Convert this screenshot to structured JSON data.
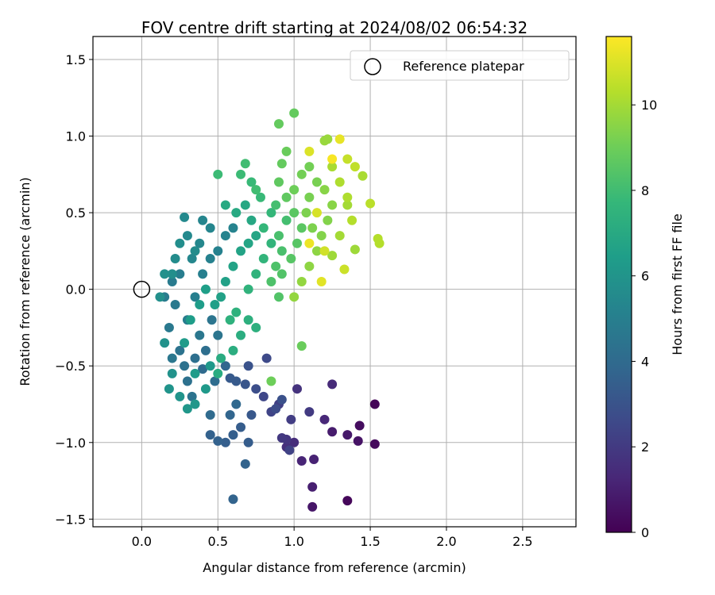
{
  "chart_data": {
    "type": "scatter",
    "title": "FOV centre drift starting at 2024/08/02 06:54:32",
    "xlabel": "Angular distance from reference (arcmin)",
    "ylabel": "Rotation from reference (arcmin)",
    "xlim": [
      -0.32,
      2.85
    ],
    "ylim": [
      -1.55,
      1.65
    ],
    "xticks": [
      0.0,
      0.5,
      1.0,
      1.5,
      2.0,
      2.5
    ],
    "xtick_labels": [
      "0.0",
      "0.5",
      "1.0",
      "1.5",
      "2.0",
      "2.5"
    ],
    "yticks": [
      -1.5,
      -1.0,
      -0.5,
      0.0,
      0.5,
      1.0,
      1.5
    ],
    "ytick_labels": [
      "−1.5",
      "−1.0",
      "−0.5",
      "0.0",
      "0.5",
      "1.0",
      "1.5"
    ],
    "grid": true,
    "legend": {
      "placement": "top-right",
      "entries": [
        {
          "label": "Reference platepar",
          "marker": "open-circle"
        }
      ]
    },
    "reference_point": {
      "x": 0.0,
      "y": 0.0
    },
    "colorbar": {
      "label": "Hours from first FF file",
      "colormap": "viridis",
      "range": [
        0,
        11.6
      ],
      "ticks": [
        0,
        2,
        4,
        6,
        8,
        10
      ],
      "tick_labels": [
        "0",
        "2",
        "4",
        "6",
        "8",
        "10"
      ]
    },
    "colormap_stops": [
      "#440154",
      "#482878",
      "#3e4989",
      "#31688e",
      "#26828e",
      "#1f9e89",
      "#35b779",
      "#6ece58",
      "#b5de2b",
      "#fde725"
    ],
    "series": [
      {
        "points": [
          [
            1.53,
            -0.75,
            0.1
          ],
          [
            1.35,
            -1.38,
            0.2
          ],
          [
            1.53,
            -1.01,
            0.3
          ],
          [
            1.43,
            -0.89,
            0.4
          ],
          [
            1.42,
            -0.99,
            0.6
          ],
          [
            1.12,
            -1.42,
            0.7
          ],
          [
            1.35,
            -0.95,
            0.8
          ],
          [
            1.25,
            -0.93,
            0.9
          ],
          [
            1.12,
            -1.29,
            1.0
          ],
          [
            1.13,
            -1.11,
            1.1
          ],
          [
            1.05,
            -1.12,
            1.2
          ],
          [
            1.2,
            -0.85,
            1.3
          ],
          [
            1.25,
            -0.62,
            1.4
          ],
          [
            1.0,
            -1.0,
            1.5
          ],
          [
            0.95,
            -1.03,
            1.6
          ],
          [
            1.02,
            -0.65,
            1.7
          ],
          [
            0.95,
            -0.98,
            1.8
          ],
          [
            0.92,
            -0.97,
            1.9
          ],
          [
            1.1,
            -0.8,
            2.0
          ],
          [
            0.98,
            -0.85,
            2.1
          ],
          [
            0.9,
            -0.75,
            2.2
          ],
          [
            0.97,
            -1.05,
            2.3
          ],
          [
            0.85,
            -0.8,
            2.4
          ],
          [
            0.8,
            -0.7,
            2.5
          ],
          [
            0.82,
            -0.45,
            2.6
          ],
          [
            0.88,
            -0.78,
            2.7
          ],
          [
            0.75,
            -0.65,
            2.8
          ],
          [
            0.92,
            -0.72,
            2.9
          ],
          [
            0.7,
            -0.5,
            3.0
          ],
          [
            0.68,
            -0.62,
            3.1
          ],
          [
            0.72,
            -0.82,
            3.2
          ],
          [
            0.62,
            -0.6,
            3.3
          ],
          [
            0.58,
            -0.58,
            3.3
          ],
          [
            0.65,
            -0.9,
            3.4
          ],
          [
            0.7,
            -1.0,
            3.4
          ],
          [
            0.6,
            -0.95,
            3.5
          ],
          [
            0.55,
            -1.0,
            3.5
          ],
          [
            0.5,
            -0.99,
            3.6
          ],
          [
            0.45,
            -0.95,
            3.6
          ],
          [
            0.6,
            -1.37,
            3.7
          ],
          [
            0.68,
            -1.14,
            3.7
          ],
          [
            0.55,
            -0.5,
            3.8
          ],
          [
            0.58,
            -0.82,
            3.8
          ],
          [
            0.62,
            -0.75,
            3.9
          ],
          [
            0.45,
            -0.82,
            4.0
          ],
          [
            0.4,
            -0.52,
            4.0
          ],
          [
            0.48,
            -0.6,
            4.1
          ],
          [
            0.35,
            -0.45,
            4.2
          ],
          [
            0.42,
            -0.4,
            4.2
          ],
          [
            0.3,
            -0.6,
            4.3
          ],
          [
            0.28,
            -0.5,
            4.3
          ],
          [
            0.33,
            -0.7,
            4.4
          ],
          [
            0.25,
            -0.4,
            4.4
          ],
          [
            0.5,
            -0.3,
            4.5
          ],
          [
            0.46,
            -0.2,
            4.5
          ],
          [
            0.38,
            -0.3,
            4.6
          ],
          [
            0.2,
            -0.45,
            4.6
          ],
          [
            0.18,
            -0.25,
            4.7
          ],
          [
            0.22,
            -0.1,
            4.7
          ],
          [
            0.15,
            -0.05,
            4.8
          ],
          [
            0.2,
            0.05,
            4.8
          ],
          [
            0.25,
            0.1,
            4.9
          ],
          [
            0.3,
            -0.2,
            4.9
          ],
          [
            0.35,
            -0.05,
            5.0
          ],
          [
            0.4,
            0.1,
            5.0
          ],
          [
            0.45,
            0.2,
            5.1
          ],
          [
            0.5,
            0.25,
            5.1
          ],
          [
            0.55,
            0.35,
            5.2
          ],
          [
            0.6,
            0.4,
            5.2
          ],
          [
            0.45,
            0.4,
            5.3
          ],
          [
            0.4,
            0.45,
            5.3
          ],
          [
            0.38,
            0.3,
            5.4
          ],
          [
            0.33,
            0.2,
            5.4
          ],
          [
            0.3,
            0.35,
            5.5
          ],
          [
            0.28,
            0.47,
            5.5
          ],
          [
            0.35,
            0.25,
            5.6
          ],
          [
            0.22,
            0.2,
            5.6
          ],
          [
            0.25,
            0.3,
            5.7
          ],
          [
            0.2,
            0.1,
            5.7
          ],
          [
            0.15,
            0.1,
            5.8
          ],
          [
            0.12,
            -0.05,
            5.8
          ],
          [
            0.15,
            -0.35,
            5.9
          ],
          [
            0.2,
            -0.55,
            5.9
          ],
          [
            0.25,
            -0.7,
            6.0
          ],
          [
            0.18,
            -0.65,
            6.0
          ],
          [
            0.3,
            -0.78,
            6.1
          ],
          [
            0.35,
            -0.75,
            6.1
          ],
          [
            0.42,
            -0.65,
            6.2
          ],
          [
            0.45,
            -0.5,
            6.2
          ],
          [
            0.35,
            -0.55,
            6.3
          ],
          [
            0.28,
            -0.35,
            6.3
          ],
          [
            0.32,
            -0.2,
            6.4
          ],
          [
            0.38,
            -0.1,
            6.4
          ],
          [
            0.42,
            0.0,
            6.5
          ],
          [
            0.48,
            -0.1,
            6.5
          ],
          [
            0.52,
            -0.05,
            6.6
          ],
          [
            0.55,
            0.05,
            6.6
          ],
          [
            0.6,
            0.15,
            6.7
          ],
          [
            0.65,
            0.25,
            6.7
          ],
          [
            0.7,
            0.3,
            6.8
          ],
          [
            0.75,
            0.35,
            6.8
          ],
          [
            0.72,
            0.45,
            6.9
          ],
          [
            0.68,
            0.55,
            6.9
          ],
          [
            0.62,
            0.5,
            7.0
          ],
          [
            0.55,
            0.55,
            7.0
          ],
          [
            0.5,
            -0.55,
            7.1
          ],
          [
            0.52,
            -0.45,
            7.1
          ],
          [
            0.6,
            -0.4,
            7.2
          ],
          [
            0.65,
            -0.3,
            7.2
          ],
          [
            0.7,
            -0.2,
            7.3
          ],
          [
            0.75,
            -0.25,
            7.3
          ],
          [
            0.62,
            -0.15,
            7.4
          ],
          [
            0.58,
            -0.2,
            7.4
          ],
          [
            0.7,
            0.0,
            7.5
          ],
          [
            0.75,
            0.1,
            7.5
          ],
          [
            0.8,
            0.2,
            7.6
          ],
          [
            0.85,
            0.3,
            7.6
          ],
          [
            0.8,
            0.4,
            7.7
          ],
          [
            0.85,
            0.5,
            7.7
          ],
          [
            0.78,
            0.6,
            7.8
          ],
          [
            0.72,
            0.7,
            7.8
          ],
          [
            0.65,
            0.75,
            7.9
          ],
          [
            0.5,
            0.75,
            7.9
          ],
          [
            0.68,
            0.82,
            8.0
          ],
          [
            0.75,
            0.65,
            8.0
          ],
          [
            0.88,
            0.55,
            8.1
          ],
          [
            0.95,
            0.45,
            8.1
          ],
          [
            0.9,
            0.35,
            8.2
          ],
          [
            0.92,
            0.25,
            8.2
          ],
          [
            0.88,
            0.15,
            8.3
          ],
          [
            0.85,
            0.05,
            8.3
          ],
          [
            0.9,
            -0.05,
            8.4
          ],
          [
            0.92,
            0.1,
            8.4
          ],
          [
            0.98,
            0.2,
            8.5
          ],
          [
            1.02,
            0.3,
            8.5
          ],
          [
            1.05,
            0.4,
            8.6
          ],
          [
            1.0,
            0.5,
            8.6
          ],
          [
            0.95,
            0.6,
            8.7
          ],
          [
            0.9,
            0.7,
            8.7
          ],
          [
            0.92,
            0.82,
            8.8
          ],
          [
            0.9,
            1.08,
            8.8
          ],
          [
            1.0,
            1.15,
            8.8
          ],
          [
            0.95,
            0.9,
            8.9
          ],
          [
            1.05,
            -0.37,
            8.9
          ],
          [
            0.85,
            -0.6,
            9.0
          ],
          [
            1.0,
            0.65,
            9.0
          ],
          [
            1.05,
            0.75,
            9.1
          ],
          [
            1.1,
            0.8,
            9.1
          ],
          [
            1.15,
            0.7,
            9.2
          ],
          [
            1.1,
            0.6,
            9.2
          ],
          [
            1.08,
            0.5,
            9.3
          ],
          [
            1.12,
            0.4,
            9.3
          ],
          [
            1.18,
            0.35,
            9.4
          ],
          [
            1.22,
            0.45,
            9.4
          ],
          [
            1.25,
            0.55,
            9.5
          ],
          [
            1.2,
            0.65,
            9.5
          ],
          [
            1.15,
            0.25,
            9.6
          ],
          [
            1.1,
            0.15,
            9.6
          ],
          [
            1.05,
            0.05,
            9.7
          ],
          [
            1.0,
            -0.05,
            9.7
          ],
          [
            1.2,
            0.97,
            9.8
          ],
          [
            1.22,
            0.98,
            9.8
          ],
          [
            1.4,
            0.26,
            9.9
          ],
          [
            1.25,
            0.22,
            9.9
          ],
          [
            1.3,
            0.35,
            10.0
          ],
          [
            1.35,
            0.55,
            10.0
          ],
          [
            1.45,
            0.74,
            10.1
          ],
          [
            1.25,
            0.8,
            10.1
          ],
          [
            1.3,
            0.7,
            10.2
          ],
          [
            1.35,
            0.6,
            10.2
          ],
          [
            1.38,
            0.45,
            10.3
          ],
          [
            1.55,
            0.33,
            10.3
          ],
          [
            1.56,
            0.3,
            10.3
          ],
          [
            1.5,
            0.56,
            10.4
          ],
          [
            1.4,
            0.8,
            10.5
          ],
          [
            1.35,
            0.85,
            10.6
          ],
          [
            1.33,
            0.13,
            10.7
          ],
          [
            1.2,
            0.25,
            10.8
          ],
          [
            1.15,
            0.5,
            10.9
          ],
          [
            1.1,
            0.9,
            11.0
          ],
          [
            1.18,
            0.05,
            11.1
          ],
          [
            1.3,
            0.98,
            11.2
          ],
          [
            1.1,
            0.3,
            11.3
          ],
          [
            1.25,
            0.85,
            11.5
          ]
        ]
      }
    ]
  }
}
